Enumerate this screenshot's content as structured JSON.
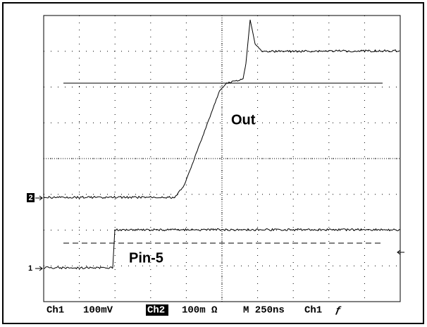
{
  "annotations": {
    "out": "Out",
    "pin5": "Pin-5"
  },
  "markers": {
    "ch2": "2",
    "ch1": "1"
  },
  "status": {
    "ch1": "Ch1",
    "ch1_scale": "100mV",
    "ch2": "Ch2",
    "ch2_scale": "100m Ω",
    "timebase": "M 250ns",
    "trigger_source": "Ch1",
    "trigger_slope": "ƒ"
  }
}
